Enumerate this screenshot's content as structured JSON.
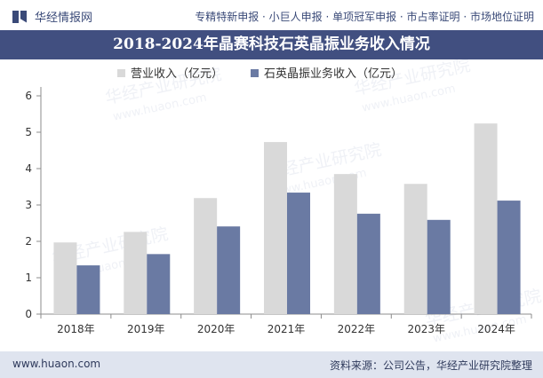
{
  "header": {
    "brand": "华经情报网",
    "tagline": "专精特新申报 · 小巨人申报 · 单项冠军申报 · 市占率证明 · 市场地位证明"
  },
  "footer": {
    "site": "www.huaon.com",
    "source": "资料来源：公司公告，华经产业研究院整理"
  },
  "watermark": {
    "brand": "华经产业研究院",
    "url": "www.huaon.com"
  },
  "colors": {
    "revenue": "#d9d9d9",
    "quartz": "#6a7aa3",
    "title_bg": "#414f80"
  },
  "chart_data": {
    "type": "bar",
    "title": "2018-2024年晶赛科技石英晶振业务收入情况",
    "categories": [
      "2018年",
      "2019年",
      "2020年",
      "2021年",
      "2022年",
      "2023年",
      "2024年"
    ],
    "series": [
      {
        "name": "营业收入（亿元）",
        "values": [
          1.97,
          2.26,
          3.19,
          4.73,
          3.85,
          3.58,
          5.24
        ]
      },
      {
        "name": "石英晶振业务收入（亿元）",
        "values": [
          1.34,
          1.65,
          2.41,
          3.34,
          2.76,
          2.59,
          3.12
        ]
      }
    ],
    "yticks": [
      0,
      1,
      2,
      3,
      4,
      5,
      6
    ],
    "ylim": [
      0,
      6
    ],
    "grid": false,
    "legend": "top-center"
  }
}
